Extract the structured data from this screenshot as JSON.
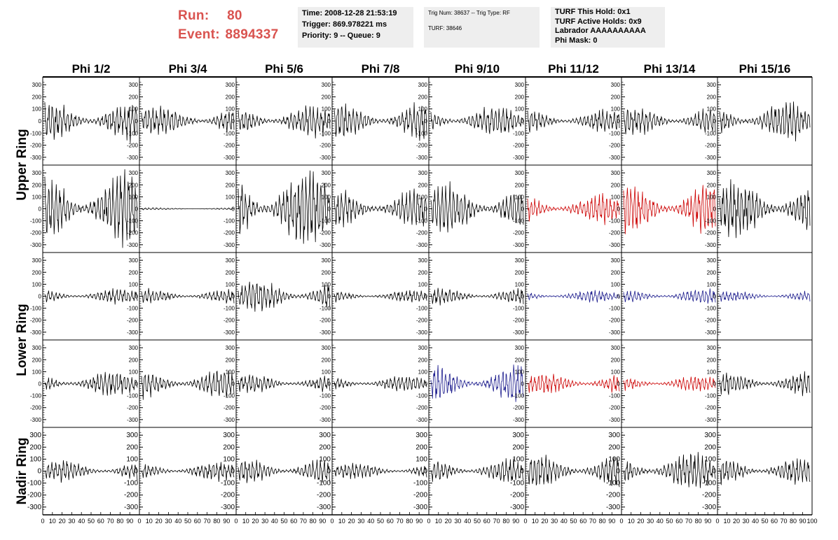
{
  "header": {
    "run_label": "Run:",
    "run_value": "80",
    "event_label": "Event:",
    "event_value": "8894337",
    "colors": {
      "run_text": "#d9534f",
      "box_bg": "#eeeeee"
    }
  },
  "info_boxes": [
    {
      "lines": [
        "Time: 2008-12-28 21:53:19",
        "Trigger: 869.978221 ms",
        "Priority: 9 -- Queue: 9"
      ]
    },
    {
      "lines": [
        "Trig Num: 38637 -- Trig Type: RF",
        "",
        "TURF: 38646"
      ]
    },
    {
      "lines": [
        "TURF This Hold: 0x1",
        "TURF Active Holds: 0x9",
        "Labrador AAAAAAAAAA",
        "Phi Mask: 0"
      ]
    }
  ],
  "chart_data": {
    "type": "line",
    "columns": [
      "Phi 1/2",
      "Phi 3/4",
      "Phi 5/6",
      "Phi 7/8",
      "Phi 9/10",
      "Phi 11/12",
      "Phi 13/14",
      "Phi 15/16"
    ],
    "ring_labels": [
      "Upper Ring",
      "Lower Ring",
      "Nadir Ring"
    ],
    "ylim": [
      -330,
      330
    ],
    "xlim": [
      0,
      100
    ],
    "yticks": [
      -300,
      -200,
      -100,
      0,
      100,
      200,
      300
    ],
    "x_tick_labels": [
      "0",
      "10",
      "20",
      "30",
      "40",
      "50",
      "60",
      "70",
      "80",
      "90",
      "100"
    ],
    "color_map": {
      "black": "#000000",
      "red": "#cc0000",
      "blue": "#1a1a8c"
    },
    "rows": [
      {
        "ring": "Upper Ring",
        "amplitudes": [
          150,
          110,
          120,
          140,
          110,
          90,
          110,
          140
        ],
        "colors": [
          "black",
          "black",
          "black",
          "black",
          "black",
          "black",
          "black",
          "black"
        ]
      },
      {
        "ring": "Upper Ring",
        "amplitudes": [
          280,
          8,
          300,
          150,
          190,
          110,
          200,
          210
        ],
        "colors": [
          "black",
          "black",
          "black",
          "black",
          "black",
          "red",
          "red",
          "black"
        ]
      },
      {
        "ring": "Lower Ring",
        "amplitudes": [
          55,
          55,
          120,
          45,
          60,
          45,
          55,
          40
        ],
        "colors": [
          "black",
          "black",
          "black",
          "black",
          "black",
          "blue",
          "blue",
          "blue"
        ]
      },
      {
        "ring": "Lower Ring",
        "amplitudes": [
          90,
          110,
          70,
          60,
          140,
          80,
          60,
          90
        ],
        "colors": [
          "black",
          "black",
          "black",
          "black",
          "blue",
          "red",
          "red",
          "black"
        ]
      },
      {
        "ring": "Nadir Ring",
        "amplitudes": [
          80,
          70,
          100,
          60,
          90,
          130,
          140,
          100
        ],
        "colors": [
          "black",
          "black",
          "black",
          "black",
          "black",
          "black",
          "black",
          "black"
        ]
      }
    ]
  }
}
